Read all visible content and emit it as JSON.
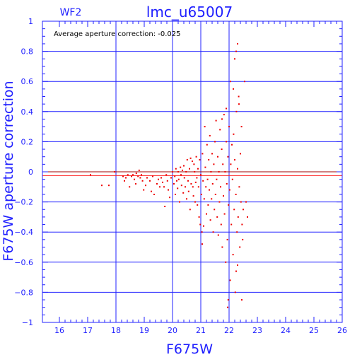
{
  "chart_data": {
    "type": "scatter",
    "chip_label": "WF2",
    "title": "lmc_u65007",
    "xlabel": "F675W",
    "ylabel": "F675W aperture correction",
    "annotation": "Average aperture correction: -0.025",
    "xlim": [
      15.4,
      26
    ],
    "ylim": [
      -1,
      1
    ],
    "x_ticks": [
      16,
      17,
      18,
      19,
      20,
      21,
      22,
      23,
      24,
      25,
      26
    ],
    "x_tick_labels": [
      "16",
      "17",
      "18",
      "19",
      "20",
      "21",
      "22",
      "23",
      "24",
      "25",
      "26"
    ],
    "y_ticks": [
      -1,
      -0.8,
      -0.6,
      -0.4,
      -0.2,
      0,
      0.2,
      0.4,
      0.6,
      0.8,
      1
    ],
    "y_tick_labels": [
      "−1",
      "−0.8",
      "−0.6",
      "−0.4",
      "−0.2",
      "0",
      "0.2",
      "0.4",
      "0.6",
      "0.8",
      "1"
    ],
    "grid_x": [
      18,
      20,
      21,
      22
    ],
    "grid_y": [
      -0.8,
      -0.6,
      -0.4,
      -0.2,
      0.2,
      0.4,
      0.6,
      0.8
    ],
    "reference_lines": [
      {
        "y": 0,
        "color": "#a00000"
      },
      {
        "y": -0.025,
        "color": "#ff2020"
      }
    ],
    "colors": {
      "frame": "#2020ff",
      "grid": "#2020ff",
      "points": "#ee0000"
    },
    "series": [
      {
        "points": [
          [
            17.1,
            -0.02
          ],
          [
            17.5,
            -0.09
          ],
          [
            17.75,
            -0.09
          ],
          [
            17.95,
            0.0
          ],
          [
            18.25,
            -0.03
          ],
          [
            18.3,
            -0.06
          ],
          [
            18.35,
            -0.04
          ],
          [
            18.42,
            -0.02
          ],
          [
            18.48,
            -0.1
          ],
          [
            18.55,
            -0.03
          ],
          [
            18.6,
            -0.02
          ],
          [
            18.65,
            -0.05
          ],
          [
            18.7,
            -0.08
          ],
          [
            18.72,
            -0.01
          ],
          [
            18.78,
            -0.03
          ],
          [
            18.82,
            0.01
          ],
          [
            18.86,
            -0.04
          ],
          [
            18.9,
            -0.02
          ],
          [
            18.94,
            -0.06
          ],
          [
            18.98,
            -0.12
          ],
          [
            19.05,
            -0.09
          ],
          [
            19.1,
            -0.04
          ],
          [
            19.2,
            -0.06
          ],
          [
            19.25,
            -0.13
          ],
          [
            19.3,
            -0.03
          ],
          [
            19.35,
            -0.15
          ],
          [
            19.45,
            -0.08
          ],
          [
            19.5,
            -0.05
          ],
          [
            19.55,
            -0.1
          ],
          [
            19.6,
            -0.04
          ],
          [
            19.65,
            -0.07
          ],
          [
            19.7,
            -0.1
          ],
          [
            19.73,
            -0.23
          ],
          [
            19.78,
            -0.02
          ],
          [
            19.82,
            -0.06
          ],
          [
            19.85,
            -0.12
          ],
          [
            19.9,
            -0.17
          ],
          [
            19.95,
            -0.04
          ],
          [
            20.0,
            0.0
          ],
          [
            20.05,
            -0.08
          ],
          [
            20.08,
            -0.03
          ],
          [
            20.1,
            -0.15
          ],
          [
            20.12,
            0.02
          ],
          [
            20.15,
            -0.06
          ],
          [
            20.18,
            -0.11
          ],
          [
            20.2,
            0.0
          ],
          [
            20.22,
            -0.05
          ],
          [
            20.25,
            -0.2
          ],
          [
            20.28,
            0.03
          ],
          [
            20.3,
            -0.02
          ],
          [
            20.32,
            -0.09
          ],
          [
            20.35,
            0.01
          ],
          [
            20.38,
            -0.14
          ],
          [
            20.4,
            0.04
          ],
          [
            20.42,
            -0.04
          ],
          [
            20.45,
            -0.1
          ],
          [
            20.48,
            0.0
          ],
          [
            20.5,
            -0.18
          ],
          [
            20.52,
            0.08
          ],
          [
            20.55,
            -0.06
          ],
          [
            20.57,
            -0.13
          ],
          [
            20.6,
            0.02
          ],
          [
            20.62,
            -0.25
          ],
          [
            20.64,
            0.09
          ],
          [
            20.66,
            -0.08
          ],
          [
            20.7,
            0.07
          ],
          [
            20.72,
            -0.1
          ],
          [
            20.74,
            -0.16
          ],
          [
            20.76,
            0.05
          ],
          [
            20.78,
            0.0
          ],
          [
            20.8,
            -0.2
          ],
          [
            20.82,
            -0.07
          ],
          [
            20.84,
            0.1
          ],
          [
            20.86,
            -0.04
          ],
          [
            20.88,
            -0.22
          ],
          [
            20.9,
            0.02
          ],
          [
            20.92,
            -0.1
          ],
          [
            20.94,
            -0.3
          ],
          [
            20.96,
            0.08
          ],
          [
            20.98,
            -0.35
          ],
          [
            21.0,
            -0.02
          ],
          [
            21.02,
            -0.15
          ],
          [
            21.04,
            -0.4
          ],
          [
            21.05,
            -0.48
          ],
          [
            21.06,
            0.12
          ],
          [
            21.08,
            -0.06
          ],
          [
            21.1,
            -0.36
          ],
          [
            21.12,
            -0.18
          ],
          [
            21.14,
            0.3
          ],
          [
            21.16,
            0.03
          ],
          [
            21.18,
            -0.1
          ],
          [
            21.2,
            -0.28
          ],
          [
            21.22,
            0.18
          ],
          [
            21.24,
            -0.05
          ],
          [
            21.26,
            -0.22
          ],
          [
            21.28,
            0.08
          ],
          [
            21.3,
            -0.12
          ],
          [
            21.32,
            0.24
          ],
          [
            21.34,
            -0.32
          ],
          [
            21.36,
            0.0
          ],
          [
            21.38,
            -0.18
          ],
          [
            21.4,
            0.12
          ],
          [
            21.42,
            -0.08
          ],
          [
            21.44,
            -0.4
          ],
          [
            21.46,
            0.05
          ],
          [
            21.48,
            -0.25
          ],
          [
            21.5,
            0.2
          ],
          [
            21.52,
            -0.15
          ],
          [
            21.54,
            0.34
          ],
          [
            21.56,
            -0.05
          ],
          [
            21.58,
            -0.3
          ],
          [
            21.6,
            0.1
          ],
          [
            21.62,
            -0.42
          ],
          [
            21.64,
            0.0
          ],
          [
            21.66,
            -0.2
          ],
          [
            21.68,
            0.28
          ],
          [
            21.7,
            -0.1
          ],
          [
            21.72,
            -0.35
          ],
          [
            21.74,
            0.15
          ],
          [
            21.76,
            -0.5
          ],
          [
            21.78,
            0.05
          ],
          [
            21.8,
            -0.16
          ],
          [
            21.82,
            0.38
          ],
          [
            21.84,
            -0.28
          ],
          [
            21.86,
            0.0
          ],
          [
            21.88,
            -0.6
          ],
          [
            21.9,
            0.2
          ],
          [
            21.92,
            -0.08
          ],
          [
            21.94,
            -0.45
          ],
          [
            21.96,
            0.1
          ],
          [
            21.98,
            -0.22
          ],
          [
            22.0,
            0.3
          ],
          [
            22.02,
            -0.12
          ],
          [
            22.04,
            -0.72
          ],
          [
            22.06,
            0.05
          ],
          [
            22.08,
            -0.35
          ],
          [
            22.1,
            0.18
          ],
          [
            22.12,
            -0.05
          ],
          [
            22.14,
            -0.55
          ],
          [
            22.16,
            0.25
          ],
          [
            22.18,
            -0.25
          ],
          [
            22.2,
            0.08
          ],
          [
            22.22,
            -0.8
          ],
          [
            22.24,
            -0.15
          ],
          [
            22.26,
            0.4
          ],
          [
            22.28,
            -0.4
          ],
          [
            22.3,
            0.02
          ],
          [
            22.32,
            -0.3
          ],
          [
            22.34,
            0.5
          ],
          [
            22.36,
            -0.1
          ],
          [
            22.38,
            -0.5
          ],
          [
            22.4,
            0.12
          ],
          [
            22.42,
            -0.2
          ],
          [
            22.44,
            0.3
          ],
          [
            22.46,
            -0.35
          ],
          [
            22.48,
            -0.45
          ],
          [
            22.5,
            -0.25
          ],
          [
            22.55,
            0.6
          ],
          [
            22.6,
            -0.2
          ],
          [
            22.65,
            -0.3
          ],
          [
            21.95,
            -0.9
          ],
          [
            21.97,
            -0.85
          ],
          [
            22.25,
            0.8
          ],
          [
            22.3,
            0.85
          ],
          [
            22.2,
            0.75
          ],
          [
            22.35,
            0.45
          ],
          [
            22.15,
            0.55
          ],
          [
            21.9,
            0.42
          ],
          [
            22.45,
            -0.85
          ],
          [
            22.3,
            -0.62
          ],
          [
            22.25,
            -0.66
          ],
          [
            21.75,
            0.35
          ],
          [
            22.05,
            0.6
          ]
        ]
      }
    ]
  }
}
